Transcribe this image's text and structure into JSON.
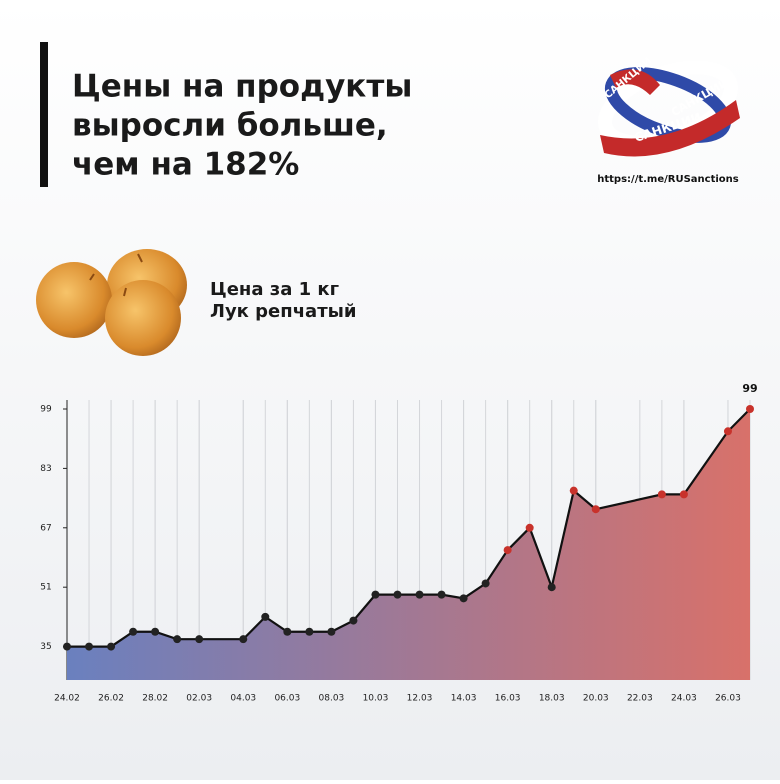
{
  "header": {
    "title_lines": [
      "Цены на продукты",
      "выросли больше,",
      "чем на 182%"
    ],
    "url": "https://t.me/RUSanctions"
  },
  "logo": {
    "texts": [
      "САНКЦИИ",
      "САНКЦИИ",
      "САНКЦИИ"
    ]
  },
  "product": {
    "price_label": "Цена за 1 кг",
    "name": "Лук репчатый"
  },
  "chart_data": {
    "type": "line",
    "x": [
      "24.02",
      "25.02",
      "26.02",
      "27.02",
      "28.02",
      "01.03",
      "02.03",
      "04.03",
      "05.03",
      "06.03",
      "07.03",
      "08.03",
      "09.03",
      "10.03",
      "11.03",
      "12.03",
      "13.03",
      "14.03",
      "15.03",
      "16.03",
      "17.03",
      "18.03",
      "19.03",
      "20.03",
      "23.03",
      "24.03",
      "26.03",
      "27.03"
    ],
    "values": [
      35,
      35,
      35,
      39,
      39,
      37,
      37,
      37,
      43,
      39,
      39,
      39,
      42,
      49,
      49,
      49,
      49,
      48,
      52,
      61,
      67,
      51,
      77,
      72,
      76,
      76,
      93,
      99
    ],
    "value_labels": [
      null,
      null,
      null,
      null,
      null,
      null,
      null,
      null,
      null,
      null,
      null,
      null,
      null,
      null,
      null,
      null,
      null,
      null,
      null,
      null,
      null,
      null,
      null,
      null,
      null,
      null,
      null,
      "99"
    ],
    "point_colors": [
      "#222",
      "#222",
      "#222",
      "#222",
      "#222",
      "#222",
      "#222",
      "#222",
      "#222",
      "#222",
      "#222",
      "#222",
      "#222",
      "#222",
      "#222",
      "#222",
      "#222",
      "#222",
      "#222",
      "#c8322b",
      "#c8322b",
      "#222",
      "#c8322b",
      "#c8322b",
      "#c8322b",
      "#c8322b",
      "#c8322b",
      "#c8322b"
    ],
    "line_color": "#111",
    "fill_colors": [
      "#6a80bf",
      "#d8716a"
    ],
    "xticks": [
      "24.02",
      "26.02",
      "28.02",
      "02.03",
      "04.03",
      "06.03",
      "08.03",
      "10.03",
      "12.03",
      "14.03",
      "16.03",
      "18.03",
      "20.03",
      "22.03",
      "24.03",
      "26.03"
    ],
    "ylim": [
      26,
      99
    ],
    "yticks": [
      35,
      51,
      67,
      83,
      99
    ],
    "grid": true
  }
}
